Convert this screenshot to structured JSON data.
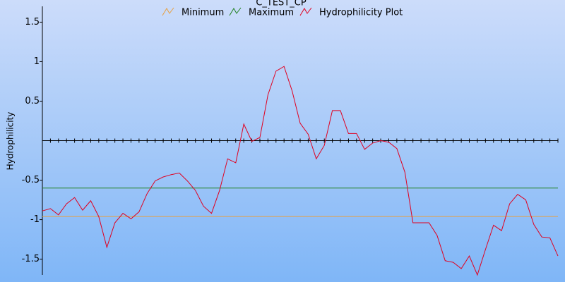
{
  "chart_data": {
    "type": "line",
    "title": "C_TEST_CP",
    "y_label": "Hydrophilicity",
    "ylim": [
      -1.7,
      1.7
    ],
    "yticks": [
      -1.5,
      -1,
      -0.5,
      0.5,
      1,
      1.5
    ],
    "series": [
      {
        "name": "Minimum",
        "color": "#e8a040",
        "values": [
          -0.96
        ]
      },
      {
        "name": "Maximum",
        "color": "#208020",
        "values": [
          -0.6
        ]
      },
      {
        "name": "Hydrophilicity Plot",
        "color": "#e00020",
        "values": [
          -0.89,
          -0.86,
          -0.94,
          -0.8,
          -0.72,
          -0.88,
          -0.76,
          -0.96,
          -1.35,
          -1.04,
          -0.92,
          -0.99,
          -0.9,
          -0.67,
          -0.51,
          -0.46,
          -0.43,
          -0.41,
          -0.51,
          -0.63,
          -0.83,
          -0.92,
          -0.63,
          -0.23,
          -0.28,
          0.21,
          -0.01,
          0.04,
          0.58,
          0.88,
          0.94,
          0.63,
          0.22,
          0.08,
          -0.23,
          -0.06,
          0.38,
          0.38,
          0.09,
          0.09,
          -0.11,
          -0.03,
          0,
          -0.02,
          -0.1,
          -0.4,
          -1.04,
          -1.04,
          -1.04,
          -1.2,
          -1.52,
          -1.54,
          -1.62,
          -1.46,
          -1.7,
          -1.38,
          -1.07,
          -1.14,
          -0.8,
          -0.68,
          -0.75,
          -1.06,
          -1.22,
          -1.23,
          -1.46
        ]
      }
    ]
  }
}
